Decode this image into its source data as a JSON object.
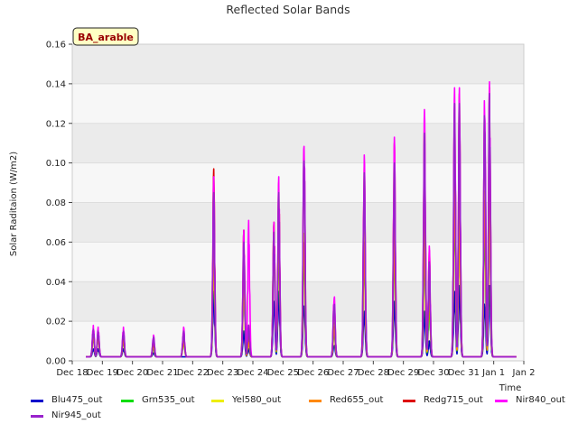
{
  "chart_data": {
    "type": "line",
    "title": "Reflected Solar Bands",
    "ylabel": "Solar Raditaion (W/m2)",
    "xlabel": "Time",
    "badge": "BA_arable",
    "ylim": [
      0,
      0.16
    ],
    "yticks": [
      "0.00",
      "0.02",
      "0.04",
      "0.06",
      "0.08",
      "0.10",
      "0.12",
      "0.14",
      "0.16"
    ],
    "xlim": [
      0,
      15
    ],
    "xticks": [
      "Dec 18",
      "Dec 19",
      "Dec 20",
      "Dec 21",
      "Dec 22",
      "Dec 23",
      "Dec 24",
      "Dec 25",
      "Dec 26",
      "Dec 27",
      "Dec 28",
      "Dec 29",
      "Dec 30",
      "Dec 31",
      "Jan 1",
      "Jan 2"
    ],
    "grid": "horizontal bands",
    "background_bands": [
      "#ebebeb",
      "#f7f7f7"
    ],
    "baseline": 0.002,
    "series": [
      {
        "name": "Blu475_out",
        "color": "#0000cc",
        "days": [
          [
            0.006,
            0.006
          ],
          [
            0.006,
            0
          ],
          [
            0.004,
            0
          ],
          [
            0,
            0
          ],
          [
            0.035,
            0
          ],
          [
            0.015,
            0.006
          ],
          [
            0.03,
            0.035
          ],
          [
            0.03,
            0
          ],
          [
            0.008,
            0
          ],
          [
            0.025,
            0
          ],
          [
            0.03,
            0
          ],
          [
            0.025,
            0.01
          ],
          [
            0.035,
            0.038
          ],
          [
            0.03,
            0.038
          ],
          [
            0,
            0
          ]
        ]
      },
      {
        "name": "Grn535_out",
        "color": "#00dd00",
        "days": [
          [
            0.012,
            0.012
          ],
          [
            0.01,
            0
          ],
          [
            0.007,
            0
          ],
          [
            0.01,
            0
          ],
          [
            0.06,
            0
          ],
          [
            0.04,
            0.01
          ],
          [
            0.06,
            0.06
          ],
          [
            0.055,
            0
          ],
          [
            0.015,
            0
          ],
          [
            0.055,
            0
          ],
          [
            0.06,
            0
          ],
          [
            0.06,
            0.03
          ],
          [
            0.08,
            0.08
          ],
          [
            0.07,
            0.08
          ],
          [
            0,
            0
          ]
        ]
      },
      {
        "name": "Yel580_out",
        "color": "#eeee00",
        "days": [
          [
            0.014,
            0.013
          ],
          [
            0.012,
            0
          ],
          [
            0.009,
            0
          ],
          [
            0.012,
            0
          ],
          [
            0.07,
            0
          ],
          [
            0.05,
            0.012
          ],
          [
            0.07,
            0.085
          ],
          [
            0.07,
            0
          ],
          [
            0.02,
            0
          ],
          [
            0.065,
            0
          ],
          [
            0.075,
            0
          ],
          [
            0.08,
            0.045
          ],
          [
            0.1,
            0.088
          ],
          [
            0.09,
            0.09
          ],
          [
            0,
            0
          ]
        ]
      },
      {
        "name": "Red655_out",
        "color": "#ff8800",
        "days": [
          [
            0.013,
            0.012
          ],
          [
            0.011,
            0
          ],
          [
            0.008,
            0
          ],
          [
            0.011,
            0
          ],
          [
            0.066,
            0
          ],
          [
            0.045,
            0.011
          ],
          [
            0.065,
            0.07
          ],
          [
            0.065,
            0
          ],
          [
            0.018,
            0
          ],
          [
            0.06,
            0
          ],
          [
            0.068,
            0
          ],
          [
            0.07,
            0.04
          ],
          [
            0.09,
            0.08
          ],
          [
            0.085,
            0.085
          ],
          [
            0,
            0
          ]
        ]
      },
      {
        "name": "Redg715_out",
        "color": "#dd0000",
        "days": [
          [
            0.016,
            0.015
          ],
          [
            0.014,
            0
          ],
          [
            0.011,
            0
          ],
          [
            0.015,
            0
          ],
          [
            0.097,
            0
          ],
          [
            0.066,
            0.018
          ],
          [
            0.07,
            0.09
          ],
          [
            0.11,
            0
          ],
          [
            0.03,
            0
          ],
          [
            0.1,
            0
          ],
          [
            0.11,
            0
          ],
          [
            0.12,
            0.056
          ],
          [
            0.13,
            0.135
          ],
          [
            0.13,
            0.138
          ],
          [
            0,
            0
          ]
        ]
      },
      {
        "name": "Nir840_out",
        "color": "#ff00ff",
        "days": [
          [
            0.018,
            0.017
          ],
          [
            0.017,
            0
          ],
          [
            0.013,
            0
          ],
          [
            0.017,
            0
          ],
          [
            0.093,
            0
          ],
          [
            0.066,
            0.071
          ],
          [
            0.07,
            0.093
          ],
          [
            0.118,
            0
          ],
          [
            0.034,
            0
          ],
          [
            0.104,
            0
          ],
          [
            0.113,
            0
          ],
          [
            0.127,
            0.058
          ],
          [
            0.138,
            0.138
          ],
          [
            0.138,
            0.141
          ],
          [
            0,
            0
          ]
        ]
      },
      {
        "name": "Nir945_out",
        "color": "#9922cc",
        "days": [
          [
            0.016,
            0.015
          ],
          [
            0.015,
            0
          ],
          [
            0.012,
            0
          ],
          [
            0.015,
            0
          ],
          [
            0.085,
            0
          ],
          [
            0.06,
            0.018
          ],
          [
            0.065,
            0.085
          ],
          [
            0.11,
            0
          ],
          [
            0.03,
            0
          ],
          [
            0.095,
            0
          ],
          [
            0.1,
            0
          ],
          [
            0.115,
            0.05
          ],
          [
            0.13,
            0.13
          ],
          [
            0.13,
            0.135
          ],
          [
            0,
            0
          ]
        ]
      }
    ]
  }
}
